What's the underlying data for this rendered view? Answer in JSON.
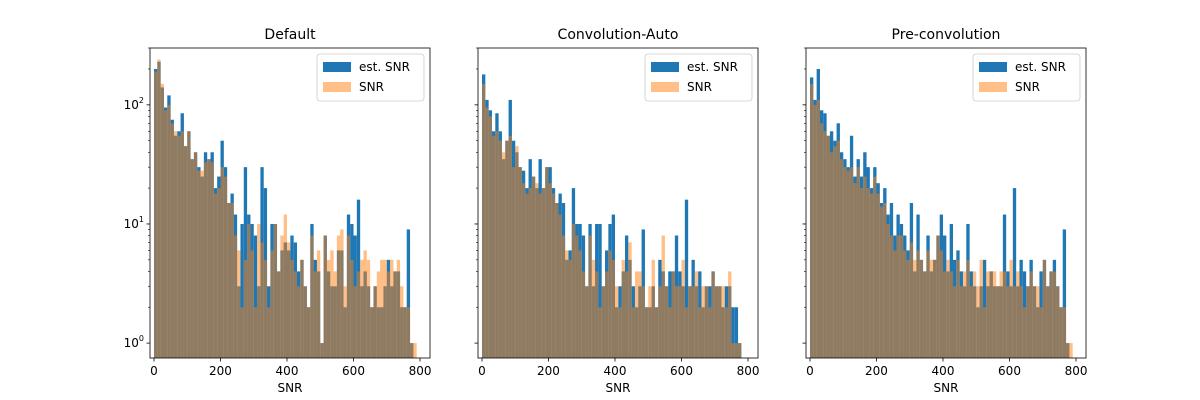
{
  "colors": {
    "est": "#1f77b4",
    "snr": "#ff7f0e",
    "snr_alpha": 0.5
  },
  "chart_data": [
    {
      "type": "bar",
      "title": "Default",
      "xlabel": "SNR",
      "ylabel": "",
      "yscale": "log",
      "xlim": [
        -12,
        830
      ],
      "ylim": [
        0.75,
        300
      ],
      "xticks": [
        0,
        200,
        400,
        600,
        800
      ],
      "yticks": [
        1,
        10,
        100
      ],
      "show_ytick_labels": true,
      "bin_width": 10,
      "legend": {
        "position": "top-right",
        "entries": [
          "est. SNR",
          "SNR"
        ]
      },
      "series": [
        {
          "name": "est. SNR",
          "x": [
            0,
            10,
            20,
            30,
            40,
            50,
            60,
            70,
            80,
            90,
            100,
            110,
            120,
            130,
            140,
            150,
            160,
            170,
            180,
            190,
            200,
            210,
            220,
            230,
            240,
            250,
            260,
            270,
            280,
            290,
            300,
            310,
            320,
            330,
            340,
            350,
            360,
            370,
            380,
            390,
            400,
            410,
            420,
            430,
            440,
            450,
            460,
            470,
            480,
            490,
            500,
            510,
            520,
            530,
            540,
            550,
            560,
            570,
            580,
            590,
            600,
            610,
            620,
            630,
            640,
            650,
            660,
            670,
            680,
            690,
            700,
            710,
            720,
            730,
            740,
            750,
            760,
            770,
            780
          ],
          "values": [
            200,
            230,
            140,
            95,
            120,
            75,
            55,
            60,
            85,
            45,
            60,
            35,
            40,
            30,
            25,
            40,
            35,
            40,
            20,
            25,
            50,
            30,
            15,
            18,
            12,
            3,
            10,
            30,
            12,
            10,
            8,
            3,
            30,
            20,
            3,
            10,
            10,
            4,
            6,
            7,
            6,
            8,
            7,
            4,
            5,
            3,
            2,
            10,
            5,
            4,
            1,
            8,
            4,
            3,
            3,
            6,
            6,
            2,
            12,
            10,
            8,
            16,
            3,
            4,
            3,
            2,
            3,
            2,
            2,
            3,
            5,
            3,
            4,
            4,
            2,
            2,
            9,
            1,
            0
          ]
        },
        {
          "name": "SNR",
          "x": [
            0,
            10,
            20,
            30,
            40,
            50,
            60,
            70,
            80,
            90,
            100,
            110,
            120,
            130,
            140,
            150,
            160,
            170,
            180,
            190,
            200,
            210,
            220,
            230,
            240,
            250,
            260,
            270,
            280,
            290,
            300,
            310,
            320,
            330,
            340,
            350,
            360,
            370,
            380,
            390,
            400,
            410,
            420,
            430,
            440,
            450,
            460,
            470,
            480,
            490,
            500,
            510,
            520,
            530,
            540,
            550,
            560,
            570,
            580,
            590,
            600,
            610,
            620,
            630,
            640,
            650,
            660,
            670,
            680,
            690,
            700,
            710,
            720,
            730,
            740,
            750,
            760,
            770,
            780
          ],
          "values": [
            190,
            240,
            150,
            90,
            100,
            70,
            60,
            55,
            60,
            45,
            60,
            35,
            40,
            28,
            28,
            33,
            35,
            33,
            18,
            20,
            30,
            25,
            15,
            15,
            8,
            6,
            2,
            5,
            10,
            6,
            2,
            10,
            7,
            5,
            2,
            6,
            10,
            4,
            8,
            12,
            7,
            5,
            4,
            3,
            5,
            3,
            2,
            8,
            4,
            6,
            1,
            8,
            5,
            6,
            4,
            8,
            9,
            3,
            8,
            5,
            3,
            4,
            5,
            6,
            5,
            2,
            3,
            4,
            5,
            5,
            4,
            5,
            4,
            5,
            3,
            2,
            2,
            1,
            1
          ]
        }
      ]
    },
    {
      "type": "bar",
      "title": "Convolution-Auto",
      "xlabel": "SNR",
      "ylabel": "",
      "yscale": "log",
      "xlim": [
        -12,
        830
      ],
      "ylim": [
        0.75,
        300
      ],
      "xticks": [
        0,
        200,
        400,
        600,
        800
      ],
      "yticks": [
        1,
        10,
        100
      ],
      "show_ytick_labels": false,
      "bin_width": 10,
      "legend": {
        "position": "top-right",
        "entries": [
          "est. SNR",
          "SNR"
        ]
      },
      "series": [
        {
          "name": "est. SNR",
          "x": [
            0,
            10,
            20,
            30,
            40,
            50,
            60,
            70,
            80,
            90,
            100,
            110,
            120,
            130,
            140,
            150,
            160,
            170,
            180,
            190,
            200,
            210,
            220,
            230,
            240,
            250,
            260,
            270,
            280,
            290,
            300,
            310,
            320,
            330,
            340,
            350,
            360,
            370,
            380,
            390,
            400,
            410,
            420,
            430,
            440,
            450,
            460,
            470,
            480,
            490,
            500,
            510,
            520,
            530,
            540,
            550,
            560,
            570,
            580,
            590,
            600,
            610,
            620,
            630,
            640,
            650,
            660,
            670,
            680,
            690,
            700,
            710,
            720,
            730,
            740,
            750,
            760,
            770,
            780
          ],
          "values": [
            180,
            110,
            90,
            60,
            85,
            60,
            35,
            50,
            110,
            50,
            40,
            30,
            28,
            20,
            35,
            25,
            20,
            35,
            20,
            30,
            30,
            20,
            15,
            18,
            15,
            5,
            6,
            20,
            10,
            10,
            8,
            3,
            10,
            3,
            10,
            10,
            3,
            6,
            10,
            12,
            2,
            3,
            4,
            8,
            5,
            3,
            2,
            3,
            9,
            2,
            2,
            3,
            2,
            5,
            4,
            3,
            4,
            4,
            8,
            4,
            3,
            16,
            3,
            5,
            3,
            4,
            2,
            3,
            3,
            4,
            3,
            3,
            2,
            3,
            3,
            2,
            2,
            1,
            0
          ]
        },
        {
          "name": "SNR",
          "x": [
            0,
            10,
            20,
            30,
            40,
            50,
            60,
            70,
            80,
            90,
            100,
            110,
            120,
            130,
            140,
            150,
            160,
            170,
            180,
            190,
            200,
            210,
            220,
            230,
            240,
            250,
            260,
            270,
            280,
            290,
            300,
            310,
            320,
            330,
            340,
            350,
            360,
            370,
            380,
            390,
            400,
            410,
            420,
            430,
            440,
            450,
            460,
            470,
            480,
            490,
            500,
            510,
            520,
            530,
            540,
            550,
            560,
            570,
            580,
            590,
            600,
            610,
            620,
            630,
            640,
            650,
            660,
            670,
            680,
            690,
            700,
            710,
            720,
            730,
            740,
            750,
            760,
            770,
            780
          ],
          "values": [
            150,
            95,
            80,
            55,
            60,
            50,
            40,
            50,
            55,
            30,
            45,
            30,
            22,
            18,
            20,
            25,
            22,
            18,
            20,
            30,
            22,
            18,
            15,
            12,
            8,
            6,
            5,
            10,
            8,
            6,
            4,
            3,
            8,
            5,
            4,
            2,
            3,
            4,
            6,
            5,
            3,
            2,
            5,
            4,
            7,
            2,
            4,
            4,
            3,
            2,
            3,
            5,
            2,
            3,
            8,
            3,
            2,
            4,
            3,
            3,
            5,
            2,
            3,
            3,
            4,
            2,
            3,
            3,
            2,
            4,
            3,
            3,
            3,
            2,
            4,
            1,
            1,
            1,
            0
          ]
        }
      ]
    },
    {
      "type": "bar",
      "title": "Pre-convolution",
      "xlabel": "SNR",
      "ylabel": "",
      "yscale": "log",
      "xlim": [
        -12,
        830
      ],
      "ylim": [
        0.75,
        300
      ],
      "xticks": [
        0,
        200,
        400,
        600,
        800
      ],
      "yticks": [
        1,
        10,
        100
      ],
      "show_ytick_labels": false,
      "bin_width": 10,
      "legend": {
        "position": "top-right",
        "entries": [
          "est. SNR",
          "SNR"
        ]
      },
      "series": [
        {
          "name": "est. SNR",
          "x": [
            0,
            10,
            20,
            30,
            40,
            50,
            60,
            70,
            80,
            90,
            100,
            110,
            120,
            130,
            140,
            150,
            160,
            170,
            180,
            190,
            200,
            210,
            220,
            230,
            240,
            250,
            260,
            270,
            280,
            290,
            300,
            310,
            320,
            330,
            340,
            350,
            360,
            370,
            380,
            390,
            400,
            410,
            420,
            430,
            440,
            450,
            460,
            470,
            480,
            490,
            500,
            510,
            520,
            530,
            540,
            550,
            560,
            570,
            580,
            590,
            600,
            610,
            620,
            630,
            640,
            650,
            660,
            670,
            680,
            690,
            700,
            710,
            720,
            730,
            740,
            750,
            760,
            770,
            780
          ],
          "values": [
            170,
            110,
            200,
            90,
            85,
            55,
            60,
            50,
            70,
            40,
            35,
            30,
            55,
            25,
            35,
            25,
            40,
            30,
            20,
            30,
            22,
            15,
            20,
            12,
            15,
            8,
            12,
            10,
            8,
            6,
            15,
            4,
            12,
            5,
            4,
            8,
            4,
            5,
            8,
            12,
            8,
            4,
            10,
            5,
            6,
            4,
            3,
            10,
            4,
            3,
            2,
            3,
            5,
            3,
            4,
            3,
            3,
            3,
            12,
            4,
            3,
            20,
            3,
            5,
            4,
            3,
            5,
            3,
            2,
            4,
            5,
            3,
            4,
            5,
            3,
            2,
            9,
            1,
            0
          ]
        },
        {
          "name": "SNR",
          "x": [
            0,
            10,
            20,
            30,
            40,
            50,
            60,
            70,
            80,
            90,
            100,
            110,
            120,
            130,
            140,
            150,
            160,
            170,
            180,
            190,
            200,
            210,
            220,
            230,
            240,
            250,
            260,
            270,
            280,
            290,
            300,
            310,
            320,
            330,
            340,
            350,
            360,
            370,
            380,
            390,
            400,
            410,
            420,
            430,
            440,
            450,
            460,
            470,
            480,
            490,
            500,
            510,
            520,
            530,
            540,
            550,
            560,
            570,
            580,
            590,
            600,
            610,
            620,
            630,
            640,
            650,
            660,
            670,
            680,
            690,
            700,
            710,
            720,
            730,
            740,
            750,
            760,
            770,
            780
          ],
          "values": [
            150,
            100,
            110,
            70,
            60,
            55,
            40,
            45,
            50,
            35,
            30,
            28,
            30,
            22,
            30,
            20,
            25,
            20,
            18,
            25,
            18,
            14,
            15,
            10,
            8,
            6,
            8,
            8,
            6,
            5,
            7,
            5,
            6,
            5,
            4,
            6,
            5,
            5,
            8,
            6,
            4,
            5,
            4,
            3,
            5,
            3,
            4,
            5,
            3,
            4,
            3,
            5,
            2,
            4,
            4,
            4,
            3,
            4,
            4,
            3,
            5,
            3,
            4,
            3,
            2,
            3,
            4,
            3,
            3,
            2,
            5,
            3,
            4,
            4,
            3,
            2,
            2,
            1,
            1
          ]
        }
      ]
    }
  ]
}
